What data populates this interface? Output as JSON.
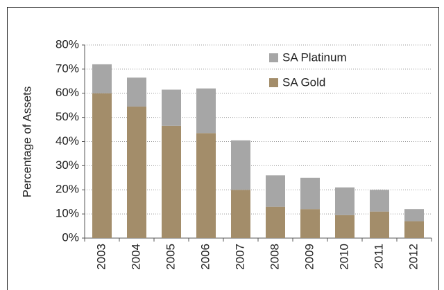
{
  "chart_data": {
    "type": "stacked_bar",
    "y_label": "Percentage of Assets",
    "categories": [
      "2003",
      "2004",
      "2005",
      "2006",
      "2007",
      "2008",
      "2009",
      "2010",
      "2011",
      "2012"
    ],
    "series": [
      {
        "name": "SA Platinum",
        "color": "#a6a6a6",
        "values": [
          12,
          12,
          15,
          18.5,
          20.5,
          13,
          13,
          11.5,
          9,
          5
        ]
      },
      {
        "name": "SA Gold",
        "color": "#a38d6a",
        "values": [
          60,
          54.5,
          46.5,
          43.5,
          20,
          13,
          12,
          9.5,
          11,
          7
        ]
      }
    ],
    "ylim": [
      0,
      80
    ],
    "yticks": [
      {
        "value": 0,
        "label": "0%"
      },
      {
        "value": 10,
        "label": "10%"
      },
      {
        "value": 20,
        "label": "20%"
      },
      {
        "value": 30,
        "label": "30%"
      },
      {
        "value": 40,
        "label": "40%"
      },
      {
        "value": 50,
        "label": "50%"
      },
      {
        "value": 60,
        "label": "60%"
      },
      {
        "value": 70,
        "label": "70%"
      },
      {
        "value": 80,
        "label": "80%"
      }
    ],
    "grid": true,
    "legend": "upper right"
  }
}
